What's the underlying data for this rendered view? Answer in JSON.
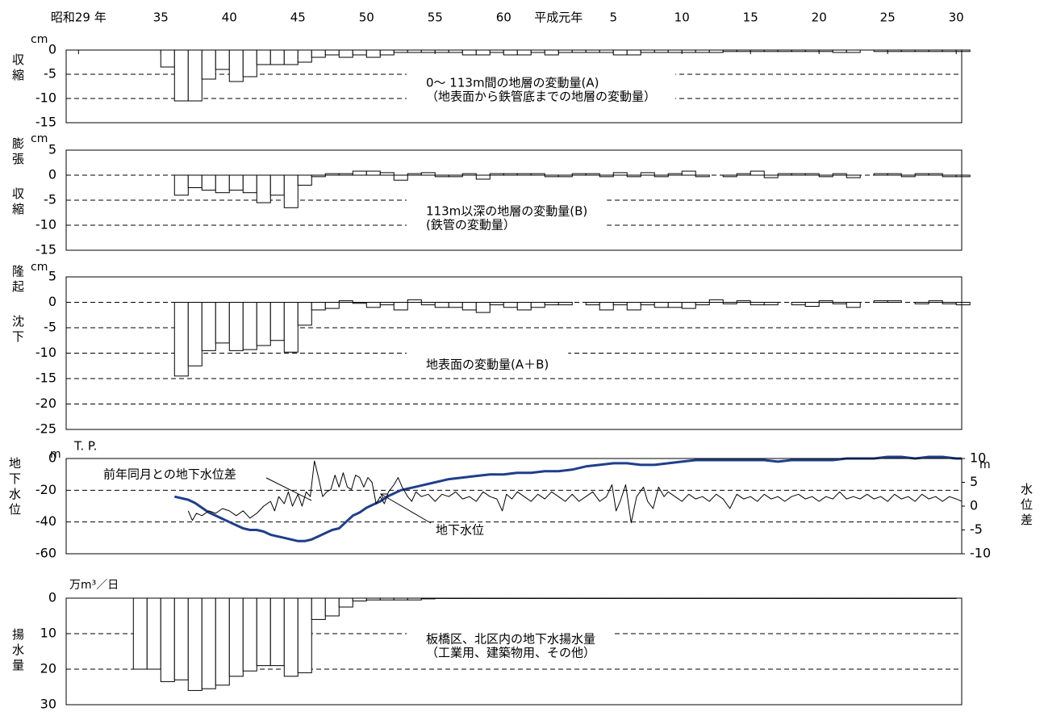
{
  "chart_data": [
    {
      "type": "bar",
      "title_lines": [
        "0〜 113m間の地層の変動量(A)",
        "（地表面から鉄管底までの地層の変動量）"
      ],
      "unit": "cm",
      "side_labels": [
        "収縮"
      ],
      "xlim": [
        1953.1,
        2018.4
      ],
      "xticks": [
        {
          "value": 1954,
          "label": "昭和29 年"
        },
        {
          "value": 1960,
          "label": "35"
        },
        {
          "value": 1965,
          "label": "40"
        },
        {
          "value": 1970,
          "label": "45"
        },
        {
          "value": 1975,
          "label": "50"
        },
        {
          "value": 1980,
          "label": "55"
        },
        {
          "value": 1985,
          "label": "60"
        },
        {
          "value": 1989,
          "label": "平成元年"
        },
        {
          "value": 1993,
          "label": "5"
        },
        {
          "value": 1998,
          "label": "10"
        },
        {
          "value": 2003,
          "label": "15"
        },
        {
          "value": 2008,
          "label": "20"
        },
        {
          "value": 2013,
          "label": "25"
        },
        {
          "value": 2018,
          "label": "30"
        }
      ],
      "x": [
        1960,
        1961,
        1962,
        1963,
        1964,
        1965,
        1966,
        1967,
        1968,
        1969,
        1970,
        1971,
        1972,
        1973,
        1974,
        1975,
        1976,
        1977,
        1978,
        1979,
        1980,
        1981,
        1982,
        1983,
        1984,
        1985,
        1986,
        1987,
        1988,
        1989,
        1990,
        1991,
        1992,
        1993,
        1994,
        1995,
        1996,
        1997,
        1998,
        1999,
        2000,
        2001,
        2002,
        2003,
        2004,
        2005,
        2006,
        2007,
        2008,
        2009,
        2010,
        2011,
        2012,
        2013,
        2014,
        2015,
        2016,
        2017,
        2018
      ],
      "values": [
        -3.5,
        -10.5,
        -10.5,
        -6,
        -4,
        -6.5,
        -5.5,
        -3,
        -3,
        -3,
        -2.5,
        -1.5,
        -1,
        -1.5,
        -1,
        -1.5,
        -1,
        -0.5,
        -0.5,
        -0.5,
        -0.5,
        -0.5,
        -1,
        -1,
        -0.5,
        -1,
        -1,
        -0.5,
        -1,
        -0.5,
        -0.5,
        -0.5,
        -0.5,
        -1,
        -1,
        -0.5,
        -0.5,
        -0.5,
        -0.5,
        -0.5,
        -0.5,
        -0.3,
        -0.3,
        -0.3,
        -0.3,
        -0.3,
        -0.3,
        -0.3,
        -0.3,
        -0.5,
        -0.5,
        null,
        -0.3,
        -0.3,
        -0.3,
        -0.3,
        -0.3,
        -0.3,
        -0.3
      ],
      "ylim": [
        -15,
        0
      ],
      "yticks": [
        0,
        -5,
        -10,
        -15
      ],
      "grid": true,
      "color": "#ffffff",
      "edge_color": "#000000"
    },
    {
      "type": "bar",
      "title_lines": [
        "113m以深の地層の変動量(B)",
        "(鉄管の変動量）"
      ],
      "unit": "cm",
      "side_labels": [
        "膨張",
        "収縮"
      ],
      "xlim": [
        1953.1,
        2018.4
      ],
      "x": [
        1961,
        1962,
        1963,
        1964,
        1965,
        1966,
        1967,
        1968,
        1969,
        1970,
        1971,
        1972,
        1973,
        1974,
        1975,
        1976,
        1977,
        1978,
        1979,
        1980,
        1981,
        1982,
        1983,
        1984,
        1985,
        1986,
        1987,
        1988,
        1989,
        1990,
        1991,
        1992,
        1993,
        1994,
        1995,
        1996,
        1997,
        1998,
        1999,
        2000,
        2001,
        2002,
        2003,
        2004,
        2005,
        2006,
        2007,
        2008,
        2009,
        2010,
        2011,
        2012,
        2013,
        2014,
        2015,
        2016,
        2017,
        2018
      ],
      "values": [
        -4,
        -2.5,
        -3,
        -3.5,
        -3,
        -3.5,
        -5.5,
        -4,
        -6.5,
        -2,
        -0.3,
        0.3,
        0.3,
        0.8,
        0.8,
        0.5,
        -1,
        0.3,
        0.5,
        -0.3,
        -0.3,
        0.3,
        -0.8,
        0.3,
        0.3,
        0.3,
        0.3,
        -0.3,
        -0.3,
        0.3,
        0.3,
        -0.3,
        0.5,
        -0.3,
        0.5,
        -0.3,
        0.3,
        0.8,
        -0.3,
        0,
        -0.3,
        0.3,
        0.8,
        -0.5,
        0.3,
        0.3,
        0.3,
        -0.3,
        0.3,
        -0.5,
        null,
        0.3,
        0.3,
        -0.3,
        0.3,
        0.3,
        -0.3,
        -0.3
      ],
      "ylim": [
        -15,
        5
      ],
      "yticks": [
        5,
        0,
        -5,
        -10,
        -15
      ],
      "grid": true,
      "color": "#ffffff",
      "edge_color": "#000000"
    },
    {
      "type": "bar",
      "title_lines": [
        "地表面の変動量(A＋B)"
      ],
      "unit": "cm",
      "side_labels": [
        "隆起",
        "沈下"
      ],
      "xlim": [
        1953.1,
        2018.4
      ],
      "x": [
        1961,
        1962,
        1963,
        1964,
        1965,
        1966,
        1967,
        1968,
        1969,
        1970,
        1971,
        1972,
        1973,
        1974,
        1975,
        1976,
        1977,
        1978,
        1979,
        1980,
        1981,
        1982,
        1983,
        1984,
        1985,
        1986,
        1987,
        1988,
        1989,
        1990,
        1991,
        1992,
        1993,
        1994,
        1995,
        1996,
        1997,
        1998,
        1999,
        2000,
        2001,
        2002,
        2003,
        2004,
        2005,
        2006,
        2007,
        2008,
        2009,
        2010,
        2011,
        2012,
        2013,
        2014,
        2015,
        2016,
        2017,
        2018
      ],
      "values": [
        -14.5,
        -12.5,
        -9.5,
        -8,
        -9.5,
        -9.3,
        -8.5,
        -7.5,
        -9.8,
        -4.5,
        -1.5,
        -1.2,
        0.3,
        -0.2,
        -1,
        -0.5,
        -1.5,
        0.5,
        -0.5,
        -1,
        -1,
        -1.5,
        -2,
        -0.5,
        -1,
        -1.5,
        -1,
        -0.5,
        -0.5,
        0,
        -0.5,
        -1.5,
        -0.5,
        -1.5,
        -0.5,
        -1,
        -1,
        -1.2,
        -0.5,
        0.5,
        -0.3,
        0.3,
        -0.5,
        -0.5,
        0,
        -0.5,
        -0.8,
        0.3,
        -0.3,
        -1,
        null,
        0.3,
        0.3,
        0,
        -0.3,
        0.3,
        -0.3,
        -0.5
      ],
      "ylim": [
        -25,
        5
      ],
      "yticks": [
        5,
        0,
        -5,
        -10,
        -15,
        -20,
        -25
      ],
      "grid": true,
      "color": "#ffffff",
      "edge_color": "#000000"
    },
    {
      "type": "line",
      "unit": "m",
      "datum": "T. P.",
      "side_labels": [
        "地下水位"
      ],
      "y2_unit": "m",
      "y2_side_labels": [
        "水位差"
      ],
      "xlim": [
        1953.1,
        2018.4
      ],
      "series": [
        {
          "name": "地下水位",
          "color": "#1f3f8a",
          "x": [
            1961,
            1961.5,
            1962,
            1962.5,
            1963,
            1963.5,
            1964,
            1964.5,
            1965,
            1965.5,
            1966,
            1966.5,
            1967,
            1967.5,
            1968,
            1968.5,
            1969,
            1969.5,
            1970,
            1970.5,
            1971,
            1971.5,
            1972,
            1972.5,
            1973,
            1973.5,
            1974,
            1974.5,
            1975,
            1975.5,
            1976,
            1976.5,
            1977,
            1977.5,
            1978,
            1979,
            1980,
            1981,
            1982,
            1983,
            1984,
            1985,
            1986,
            1987,
            1988,
            1989,
            1990,
            1991,
            1992,
            1993,
            1994,
            1995,
            1996,
            1997,
            1998,
            1999,
            2000,
            2001,
            2002,
            2003,
            2004,
            2005,
            2006,
            2007,
            2008,
            2009,
            2010,
            2011,
            2012,
            2013,
            2014,
            2015,
            2016,
            2017,
            2018,
            2018.4
          ],
          "values": [
            -24,
            -25,
            -26,
            -28,
            -31,
            -34,
            -36,
            -38,
            -40,
            -42,
            -44,
            -45,
            -45,
            -46,
            -48,
            -49,
            -50,
            -51,
            -52,
            -52,
            -51,
            -49,
            -47,
            -45,
            -44,
            -40,
            -36,
            -34,
            -31,
            -29,
            -27,
            -24,
            -22,
            -20,
            -19,
            -17,
            -15,
            -13,
            -12,
            -11,
            -10,
            -10,
            -9,
            -9,
            -8,
            -8,
            -7,
            -5,
            -4,
            -3,
            -3,
            -4,
            -4,
            -3,
            -2,
            -1,
            -1,
            -1,
            -1,
            -1,
            -1,
            -2,
            -1,
            -1,
            -1,
            -1,
            0,
            0,
            0,
            1,
            1,
            0,
            1,
            1,
            0,
            0
          ]
        },
        {
          "name": "前年同月との地下水位差",
          "color": "#000000",
          "axis": "y2",
          "x": [
            1962,
            1962.3,
            1962.6,
            1963,
            1963.5,
            1964,
            1964.5,
            1965,
            1965.5,
            1966,
            1966.5,
            1967,
            1967.5,
            1968,
            1968.3,
            1968.6,
            1969,
            1969.3,
            1969.6,
            1970,
            1970.3,
            1970.6,
            1970.9,
            1971.2,
            1971.5,
            1971.8,
            1972.1,
            1972.4,
            1972.7,
            1973,
            1973.3,
            1973.6,
            1973.9,
            1974.2,
            1974.5,
            1974.8,
            1975.1,
            1975.4,
            1975.7,
            1976,
            1976.3,
            1976.6,
            1977,
            1977.3,
            1977.6,
            1978,
            1978.3,
            1978.6,
            1979,
            1979.5,
            1980,
            1980.5,
            1981,
            1981.5,
            1982,
            1982.5,
            1983,
            1983.5,
            1984,
            1984.5,
            1984.9,
            1985.2,
            1985.6,
            1986,
            1986.5,
            1987,
            1987.5,
            1988,
            1988.5,
            1989,
            1989.5,
            1990,
            1990.5,
            1991,
            1991.5,
            1992,
            1992.5,
            1992.9,
            1993.2,
            1993.5,
            1993.9,
            1994.3,
            1994.7,
            1995.2,
            1995.5,
            1995.9,
            1996.3,
            1996.7,
            1997,
            1997.5,
            1998,
            1998.5,
            1999,
            1999.5,
            2000,
            2000.5,
            2001,
            2001.5,
            2002,
            2002.5,
            2003,
            2003.5,
            2004,
            2004.5,
            2005,
            2005.5,
            2006,
            2006.5,
            2007,
            2007.5,
            2008,
            2008.5,
            2009,
            2009.5,
            2010,
            2010.5,
            2011,
            2011.5,
            2012,
            2012.5,
            2013,
            2013.5,
            2014,
            2014.5,
            2015,
            2015.5,
            2016,
            2016.5,
            2017,
            2017.5,
            2018,
            2018.4
          ],
          "values": [
            -1,
            -3,
            -1.5,
            -2,
            -1,
            -1.5,
            -0.5,
            -1,
            -2,
            -1,
            -2.5,
            -1.5,
            0,
            1,
            -1,
            2,
            0.5,
            3,
            0,
            2.5,
            0,
            3,
            2,
            9.5,
            6,
            2,
            3,
            3.5,
            6.5,
            4,
            7,
            4,
            3.5,
            6.5,
            6,
            4,
            6,
            5,
            0.5,
            2,
            0.5,
            3,
            4.5,
            6,
            4,
            2,
            1,
            3,
            2,
            2.5,
            1,
            2.5,
            2,
            3,
            1.5,
            2,
            1,
            3,
            2,
            1.5,
            -1,
            2.5,
            1.5,
            3,
            2,
            1,
            2.5,
            1.5,
            3,
            2,
            1,
            2.5,
            1,
            2,
            3,
            1,
            2,
            4.5,
            -1,
            1,
            4.5,
            -3.5,
            2,
            4,
            1,
            -0.5,
            4,
            2,
            3,
            2,
            1,
            2.5,
            1.5,
            2,
            1,
            2.5,
            1.5,
            -0.5,
            2.5,
            1.5,
            2,
            1,
            2.5,
            1.5,
            2,
            1,
            2,
            2.5,
            1.5,
            2,
            1,
            2,
            1.5,
            3,
            1.5,
            2,
            1.5,
            2.5,
            1.5,
            2,
            1,
            2.5,
            1.5,
            2,
            1,
            2.5,
            1.5,
            2,
            1,
            2,
            1.5,
            1
          ]
        }
      ],
      "ylim": [
        -60,
        0
      ],
      "yticks": [
        0,
        -20,
        -40,
        -60
      ],
      "y2lim": [
        -10,
        10
      ],
      "y2ticks": [
        10,
        5,
        0,
        -5,
        -10
      ],
      "grid": true
    },
    {
      "type": "bar",
      "title_lines": [
        "板橋区、北区内の地下水揚水量",
        "（工業用、建築物用、その他）"
      ],
      "unit": "万m³／日",
      "side_labels": [
        "揚水量"
      ],
      "xlim": [
        1953.1,
        2018.4
      ],
      "x": [
        1958,
        1959,
        1960,
        1961,
        1962,
        1963,
        1964,
        1965,
        1966,
        1967,
        1968,
        1969,
        1970,
        1971,
        1972,
        1973,
        1974,
        1975,
        1976,
        1977,
        1978,
        1979,
        1980,
        1981,
        1982,
        1983,
        1984,
        1985,
        1986,
        1987,
        1988,
        1989,
        1990,
        1991,
        1992,
        1993,
        1994,
        1995,
        1996,
        1997,
        1998,
        1999,
        2000,
        2001,
        2002,
        2003,
        2004,
        2005,
        2006,
        2007,
        2008,
        2009,
        2010,
        2011,
        2012,
        2013,
        2014,
        2015,
        2016,
        2017
      ],
      "values": [
        20,
        20,
        23.5,
        23,
        26,
        25.5,
        24.5,
        22,
        20.5,
        19,
        19,
        22,
        21,
        6,
        5,
        2.5,
        0.8,
        0.5,
        0.5,
        0.5,
        0.5,
        0.2,
        0.1,
        0.1,
        0.1,
        0.1,
        0.1,
        0.1,
        0.1,
        0.1,
        0.1,
        0.1,
        0.1,
        0.1,
        0.1,
        0.1,
        0.1,
        0.1,
        0.1,
        0.1,
        0.1,
        0.1,
        0.1,
        0.1,
        0.1,
        0.1,
        0.1,
        0.1,
        0.1,
        0.1,
        0.1,
        0.1,
        0.1,
        0.1,
        0.1,
        0.1,
        0.1,
        0.1,
        0.1,
        0.1
      ],
      "ylim": [
        0,
        30
      ],
      "y_inverted": true,
      "yticks": [
        0,
        10,
        20,
        30
      ],
      "grid": true,
      "color": "#ffffff",
      "edge_color": "#000000"
    }
  ]
}
